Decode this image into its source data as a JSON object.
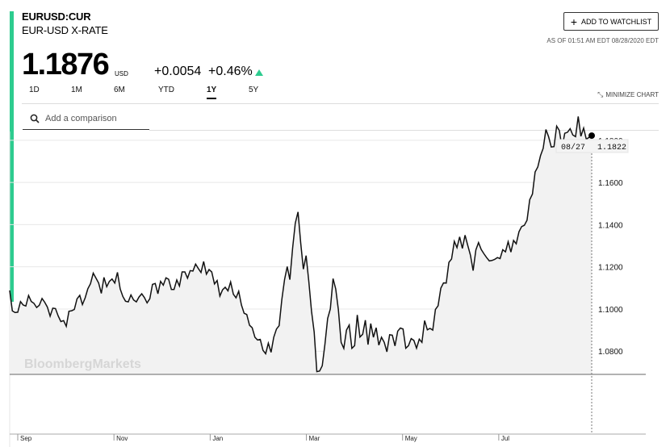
{
  "header": {
    "ticker": "EURUSD:CUR",
    "name": "EUR-USD X-RATE",
    "price": "1.1876",
    "currency": "USD",
    "change": "+0.0054",
    "change_pct": "+0.46%",
    "watchlist_label": "ADD TO WATCHLIST",
    "as_of": "AS OF 01:51 AM EDT 08/28/2020 EDT",
    "accent_color": "#2dcc8f"
  },
  "tabs": [
    {
      "label": "1D",
      "active": false
    },
    {
      "label": "1M",
      "active": false
    },
    {
      "label": "6M",
      "active": false
    },
    {
      "label": "YTD",
      "active": false
    },
    {
      "label": "1Y",
      "active": true
    },
    {
      "label": "5Y",
      "active": false
    }
  ],
  "minimize_label": "MINIMIZE CHART",
  "search": {
    "placeholder": "Add a comparison",
    "value": ""
  },
  "chart_data": {
    "type": "area",
    "watermark": "BloombergMarkets",
    "tooltip": {
      "date": "08/27",
      "value": "1.1822"
    },
    "y_ticks": [
      "1.1800",
      "1.1600",
      "1.1400",
      "1.1200",
      "1.1000",
      "1.0800"
    ],
    "x_ticks": [
      "Sep",
      "Nov",
      "Jan",
      "Mar",
      "May",
      "Jul"
    ],
    "ylim": [
      1.069,
      1.183
    ],
    "line_color": "#111111",
    "fill_color": "#f2f2f2",
    "series": [
      {
        "values": [
          1.1088,
          1.0991,
          1.0983,
          1.0985,
          1.1035,
          1.1019,
          1.1014,
          1.1064,
          1.1036,
          1.1027,
          1.1007,
          1.1018,
          1.105,
          1.1032,
          1.1009,
          1.0966,
          1.1004,
          1.1002,
          1.0967,
          1.094,
          1.0945,
          1.0918,
          1.0989,
          1.0992,
          1.0998,
          1.1048,
          1.1065,
          1.1021,
          1.1053,
          1.1096,
          1.112,
          1.117,
          1.1147,
          1.1123,
          1.1074,
          1.115,
          1.1106,
          1.1131,
          1.1142,
          1.1123,
          1.1174,
          1.1095,
          1.1059,
          1.1037,
          1.1034,
          1.1067,
          1.1043,
          1.1034,
          1.1057,
          1.1072,
          1.1054,
          1.1029,
          1.1049,
          1.1117,
          1.1121,
          1.1072,
          1.1131,
          1.1113,
          1.1148,
          1.1141,
          1.1093,
          1.1093,
          1.1138,
          1.1109,
          1.1176,
          1.1176,
          1.1146,
          1.1182,
          1.118,
          1.1213,
          1.1192,
          1.1173,
          1.1225,
          1.1165,
          1.1187,
          1.1176,
          1.1119,
          1.1135,
          1.1061,
          1.1091,
          1.1103,
          1.1086,
          1.1128,
          1.107,
          1.1053,
          1.1084,
          1.1019,
          1.098,
          1.0974,
          1.0923,
          1.0911,
          1.0866,
          1.0853,
          1.0856,
          1.0804,
          1.0788,
          1.0838,
          1.0795,
          1.0866,
          1.0905,
          1.0921,
          1.1044,
          1.1139,
          1.1201,
          1.1139,
          1.1289,
          1.1407,
          1.146,
          1.1314,
          1.1189,
          1.1253,
          1.1133,
          1.099,
          1.0891,
          1.0703,
          1.0706,
          1.0731,
          1.0832,
          1.0955,
          1.1,
          1.1144,
          1.1095,
          1.0996,
          1.0842,
          1.0813,
          1.09,
          1.0924,
          1.0813,
          1.0826,
          1.0972,
          1.0867,
          1.088,
          1.0947,
          1.0831,
          1.0931,
          1.0866,
          1.0911,
          1.0829,
          1.0866,
          1.0842,
          1.0797,
          1.0878,
          1.0876,
          1.0825,
          1.0895,
          1.091,
          1.0905,
          1.0814,
          1.0826,
          1.086,
          1.0851,
          1.0814,
          1.0857,
          1.0842,
          1.0945,
          1.0901,
          1.0908,
          1.09,
          1.0998,
          1.1015,
          1.1099,
          1.1124,
          1.1123,
          1.1221,
          1.1237,
          1.1321,
          1.1291,
          1.1342,
          1.1287,
          1.135,
          1.1301,
          1.1255,
          1.1182,
          1.128,
          1.1315,
          1.1282,
          1.1262,
          1.1244,
          1.1228,
          1.123,
          1.1235,
          1.1244,
          1.1239,
          1.1281,
          1.1271,
          1.1319,
          1.127,
          1.1325,
          1.1309,
          1.1366,
          1.1391,
          1.1397,
          1.1421,
          1.1518,
          1.1545,
          1.165,
          1.1673,
          1.1727,
          1.1762,
          1.1851,
          1.1817,
          1.1768,
          1.177,
          1.1867,
          1.1846,
          1.1765,
          1.1833,
          1.1838,
          1.1855,
          1.1825,
          1.1817,
          1.1913,
          1.1819,
          1.1858,
          1.1805,
          1.1814,
          1.1822
        ]
      }
    ]
  }
}
